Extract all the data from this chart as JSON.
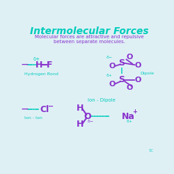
{
  "bg_color": "#dff0f5",
  "title": "Intermolecular Forces",
  "title_color": "#00ccbb",
  "subtitle1": "Molecular forces are attractive and repulsive",
  "subtitle2": "between separate molecules.",
  "subtitle_color": "#8833cc",
  "cyan": "#00ccbb",
  "purple": "#8833cc",
  "label_hydrogen_bond": "Hydrogen Bond",
  "label_ion_ion": "Ion - Ion",
  "label_ion_dipole": "Ion - Dipole",
  "label_dipole": "Dipole",
  "sc_text": "SC"
}
